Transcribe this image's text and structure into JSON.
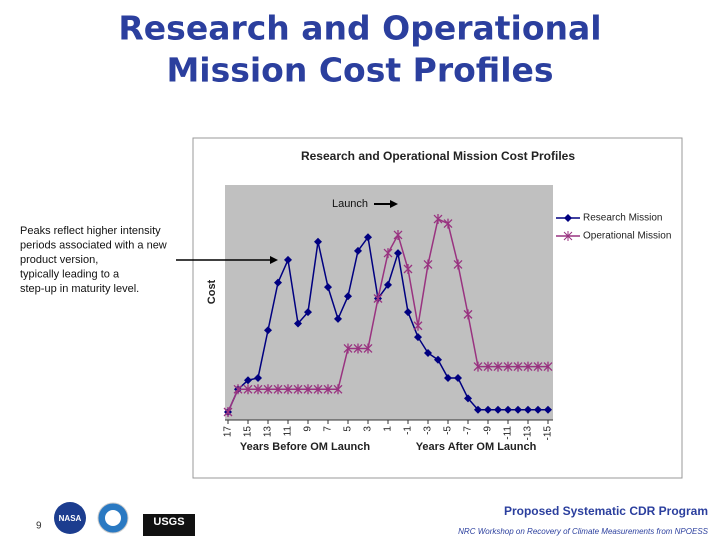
{
  "slide": {
    "title_lines": [
      "Research and Operational",
      "Mission Cost Profiles"
    ],
    "page_number": "9",
    "logos": [
      "NASA",
      "USGS"
    ],
    "footer_title": "Proposed Systematic CDR Program",
    "footer_subtitle": "NRC Workshop on Recovery of Climate Measurements from NPOESS",
    "side_note": [
      "Peaks reflect higher intensity",
      "periods associated with a new",
      "product version,",
      "typically leading to a",
      "step-up in maturity level."
    ]
  },
  "chart_data": {
    "type": "line",
    "title": "Research and Operational Mission Cost Profiles",
    "y_label": "Cost",
    "x_labels": [
      "Years Before OM Launch",
      "Years After OM Launch"
    ],
    "annotation": "Launch",
    "x": [
      17,
      16,
      15,
      14,
      13,
      12,
      11,
      10,
      9,
      8,
      7,
      6,
      5,
      4,
      3,
      2,
      1,
      0,
      -1,
      -2,
      -3,
      -4,
      -5,
      -6,
      -7,
      -8,
      -9,
      -10,
      -11,
      -12,
      -13,
      -14,
      -15
    ],
    "xlim": [
      17,
      -15
    ],
    "xticks": [
      17,
      15,
      13,
      11,
      9,
      7,
      5,
      3,
      1,
      -1,
      -3,
      -5,
      -7,
      -9,
      -11,
      -13,
      -15
    ],
    "ylim": [
      0,
      100
    ],
    "legend": "right",
    "series": [
      {
        "name": "Research Mission",
        "color": "#000080",
        "marker": "diamond",
        "values": [
          0,
          10,
          14,
          15,
          36,
          57,
          67,
          39,
          44,
          75,
          55,
          41,
          51,
          71,
          77,
          50,
          56,
          70,
          44,
          33,
          26,
          23,
          15,
          15,
          6,
          1,
          1,
          1,
          1,
          1,
          1,
          1,
          1
        ]
      },
      {
        "name": "Operational Mission",
        "color": "#993380",
        "marker": "asterisk",
        "values": [
          0,
          10,
          10,
          10,
          10,
          10,
          10,
          10,
          10,
          10,
          10,
          10,
          28,
          28,
          28,
          50,
          70,
          78,
          63,
          38,
          65,
          85,
          83,
          65,
          43,
          20,
          20,
          20,
          20,
          20,
          20,
          20,
          20
        ]
      }
    ]
  }
}
